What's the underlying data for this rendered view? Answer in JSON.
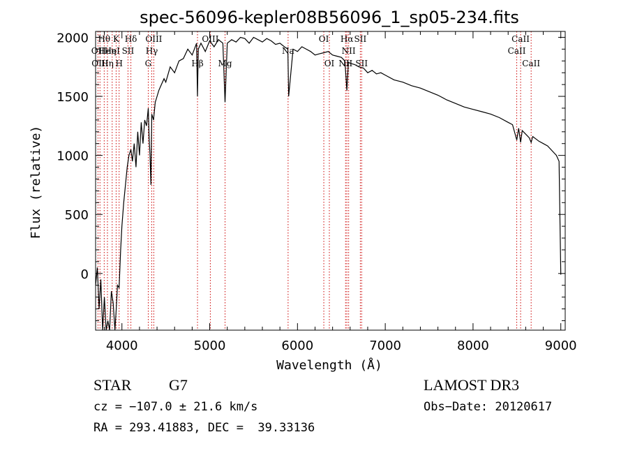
{
  "chart_data": {
    "type": "line",
    "title": "spec-56096-kepler08B56096_1_sp05-234.fits",
    "xlabel": "Wavelength (Å)",
    "ylabel": "Flux (relative)",
    "xlim": [
      3700,
      9050
    ],
    "ylim": [
      -480,
      2050
    ],
    "x_ticks": [
      4000,
      5000,
      6000,
      7000,
      8000,
      9000
    ],
    "y_ticks": [
      0,
      500,
      1000,
      1500,
      2000
    ],
    "series": [
      {
        "x": [
          3700,
          3720,
          3740,
          3760,
          3780,
          3800,
          3820,
          3840,
          3860,
          3880,
          3900,
          3920,
          3935,
          3950,
          3968,
          3985,
          4000,
          4020,
          4040,
          4060,
          4080,
          4102,
          4120,
          4140,
          4160,
          4180,
          4200,
          4220,
          4240,
          4260,
          4280,
          4300,
          4310,
          4320,
          4330,
          4340,
          4360,
          4380,
          4400,
          4420,
          4450,
          4480,
          4500,
          4550,
          4600,
          4650,
          4700,
          4750,
          4800,
          4850,
          4861,
          4870,
          4900,
          4950,
          5000,
          5050,
          5100,
          5150,
          5175,
          5200,
          5250,
          5300,
          5350,
          5400,
          5450,
          5500,
          5550,
          5600,
          5650,
          5700,
          5750,
          5800,
          5850,
          5890,
          5900,
          5950,
          6000,
          6050,
          6100,
          6150,
          6200,
          6250,
          6300,
          6350,
          6400,
          6450,
          6500,
          6540,
          6563,
          6580,
          6600,
          6650,
          6700,
          6750,
          6800,
          6850,
          6900,
          6950,
          7000,
          7100,
          7200,
          7300,
          7400,
          7500,
          7600,
          7700,
          7800,
          7900,
          8000,
          8100,
          8200,
          8300,
          8400,
          8450,
          8498,
          8520,
          8542,
          8560,
          8600,
          8640,
          8662,
          8680,
          8750,
          8800,
          8850,
          8900,
          8950,
          8980,
          9000
        ],
        "values": [
          -100,
          50,
          -300,
          -50,
          -480,
          -200,
          -480,
          -400,
          -480,
          -150,
          -250,
          -480,
          -300,
          -100,
          -120,
          200,
          400,
          600,
          750,
          900,
          1000,
          1050,
          950,
          1100,
          900,
          1200,
          1000,
          1280,
          1100,
          1300,
          1250,
          1400,
          1150,
          1000,
          750,
          1350,
          1300,
          1450,
          1500,
          1550,
          1600,
          1650,
          1620,
          1750,
          1700,
          1800,
          1820,
          1900,
          1850,
          1950,
          1500,
          1900,
          1950,
          1880,
          1970,
          1920,
          1980,
          1950,
          1450,
          1950,
          1980,
          1960,
          2000,
          1990,
          1950,
          2000,
          1980,
          1960,
          1990,
          1970,
          1940,
          1950,
          1920,
          1900,
          1500,
          1900,
          1880,
          1920,
          1900,
          1880,
          1850,
          1860,
          1870,
          1880,
          1850,
          1840,
          1830,
          1800,
          1550,
          1790,
          1780,
          1770,
          1750,
          1740,
          1700,
          1720,
          1690,
          1700,
          1680,
          1640,
          1620,
          1590,
          1570,
          1540,
          1510,
          1470,
          1440,
          1410,
          1390,
          1370,
          1350,
          1320,
          1280,
          1260,
          1130,
          1230,
          1110,
          1210,
          1180,
          1150,
          1110,
          1160,
          1120,
          1100,
          1080,
          1040,
          1000,
          950,
          -10
        ]
      }
    ],
    "spectral_lines": [
      {
        "label": "Hθ",
        "x": 3798,
        "row": 1
      },
      {
        "label": "OII",
        "x": 3727,
        "row": 2
      },
      {
        "label": "Heη",
        "x": 3835,
        "row": 2
      },
      {
        "label": "OIII",
        "x": 3750,
        "row": 3
      },
      {
        "label": "Hη",
        "x": 3835,
        "row": 3
      },
      {
        "label": "K",
        "x": 3934,
        "row": 1
      },
      {
        "label": "HeI",
        "x": 3889,
        "row": 2
      },
      {
        "label": "H",
        "x": 3968,
        "row": 3
      },
      {
        "label": "SII",
        "x": 4069,
        "row": 2
      },
      {
        "label": "Hδ",
        "x": 4102,
        "row": 1
      },
      {
        "label": "OIII",
        "x": 4363,
        "row": 1
      },
      {
        "label": "Hγ",
        "x": 4340,
        "row": 2
      },
      {
        "label": "G",
        "x": 4300,
        "row": 3
      },
      {
        "label": "Hβ",
        "x": 4861,
        "row": 3
      },
      {
        "label": "OIII",
        "x": 5007,
        "row": 1
      },
      {
        "label": "Mg",
        "x": 5175,
        "row": 3
      },
      {
        "label": "Na",
        "x": 5893,
        "row": 2
      },
      {
        "label": "OI",
        "x": 6300,
        "row": 1
      },
      {
        "label": "OI",
        "x": 6363,
        "row": 3
      },
      {
        "label": "Hα",
        "x": 6563,
        "row": 1
      },
      {
        "label": "SII",
        "x": 6716,
        "row": 1
      },
      {
        "label": "NII",
        "x": 6583,
        "row": 2
      },
      {
        "label": "NII",
        "x": 6548,
        "row": 3
      },
      {
        "label": "SII",
        "x": 6731,
        "row": 3
      },
      {
        "label": "CaII",
        "x": 8542,
        "row": 1
      },
      {
        "label": "CaII",
        "x": 8498,
        "row": 2
      },
      {
        "label": "CaII",
        "x": 8662,
        "row": 3
      }
    ]
  },
  "footer": {
    "class_label": "STAR",
    "subclass": "G7",
    "survey": "LAMOST DR3",
    "cz": "cz = −107.0 ± 21.6 km/s",
    "obs_date": "Obs−Date: 20120617",
    "coords": "RA = 293.41883, DEC =  39.33136"
  },
  "colors": {
    "line_marker": "#cc0000",
    "spectrum": "#000000"
  }
}
